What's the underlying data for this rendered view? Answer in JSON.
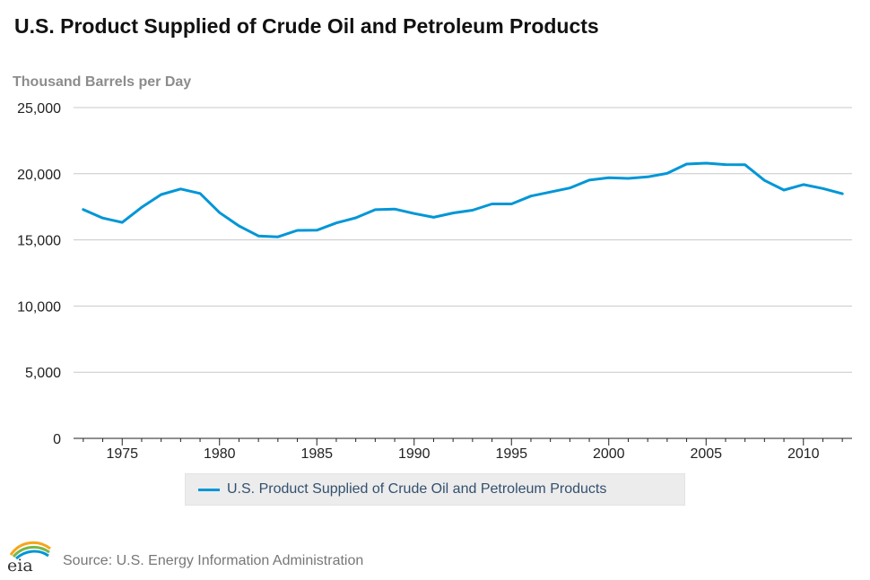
{
  "chart_data": {
    "type": "line",
    "title": "U.S. Product Supplied of Crude Oil and Petroleum Products",
    "ylabel": "Thousand Barrels per Day",
    "xlabel": "",
    "ylim": [
      0,
      25000
    ],
    "xlim": [
      1972.5,
      2012.5
    ],
    "yticks": [
      0,
      5000,
      10000,
      15000,
      20000,
      25000
    ],
    "ytick_labels": [
      "0",
      "5,000",
      "10,000",
      "15,000",
      "20,000",
      "25,000"
    ],
    "xticks": [
      1975,
      1980,
      1985,
      1990,
      1995,
      2000,
      2005,
      2010
    ],
    "xtick_labels": [
      "1975",
      "1980",
      "1985",
      "1990",
      "1995",
      "2000",
      "2005",
      "2010"
    ],
    "grid": true,
    "legend_position": "bottom-center",
    "series": [
      {
        "name": "U.S. Product Supplied of Crude Oil and Petroleum Products",
        "color": "#0096d7",
        "x": [
          1973,
          1974,
          1975,
          1976,
          1977,
          1978,
          1979,
          1980,
          1981,
          1982,
          1983,
          1984,
          1985,
          1986,
          1987,
          1988,
          1989,
          1990,
          1991,
          1992,
          1993,
          1994,
          1995,
          1996,
          1997,
          1998,
          1999,
          2000,
          2001,
          2002,
          2003,
          2004,
          2005,
          2006,
          2007,
          2008,
          2009,
          2010,
          2011,
          2012
        ],
        "values": [
          17300,
          16650,
          16320,
          17460,
          18430,
          18850,
          18510,
          17060,
          16060,
          15300,
          15230,
          15720,
          15730,
          16280,
          16670,
          17280,
          17330,
          16990,
          16710,
          17030,
          17240,
          17720,
          17720,
          18310,
          18620,
          18920,
          19520,
          19700,
          19650,
          19760,
          20030,
          20730,
          20800,
          20690,
          20680,
          19500,
          18770,
          19180,
          18880,
          18490
        ]
      }
    ]
  },
  "legend": {
    "label": "U.S. Product Supplied of Crude Oil and Petroleum Products"
  },
  "footer": {
    "source": "Source: U.S. Energy Information Administration",
    "logo_text": "eia"
  }
}
